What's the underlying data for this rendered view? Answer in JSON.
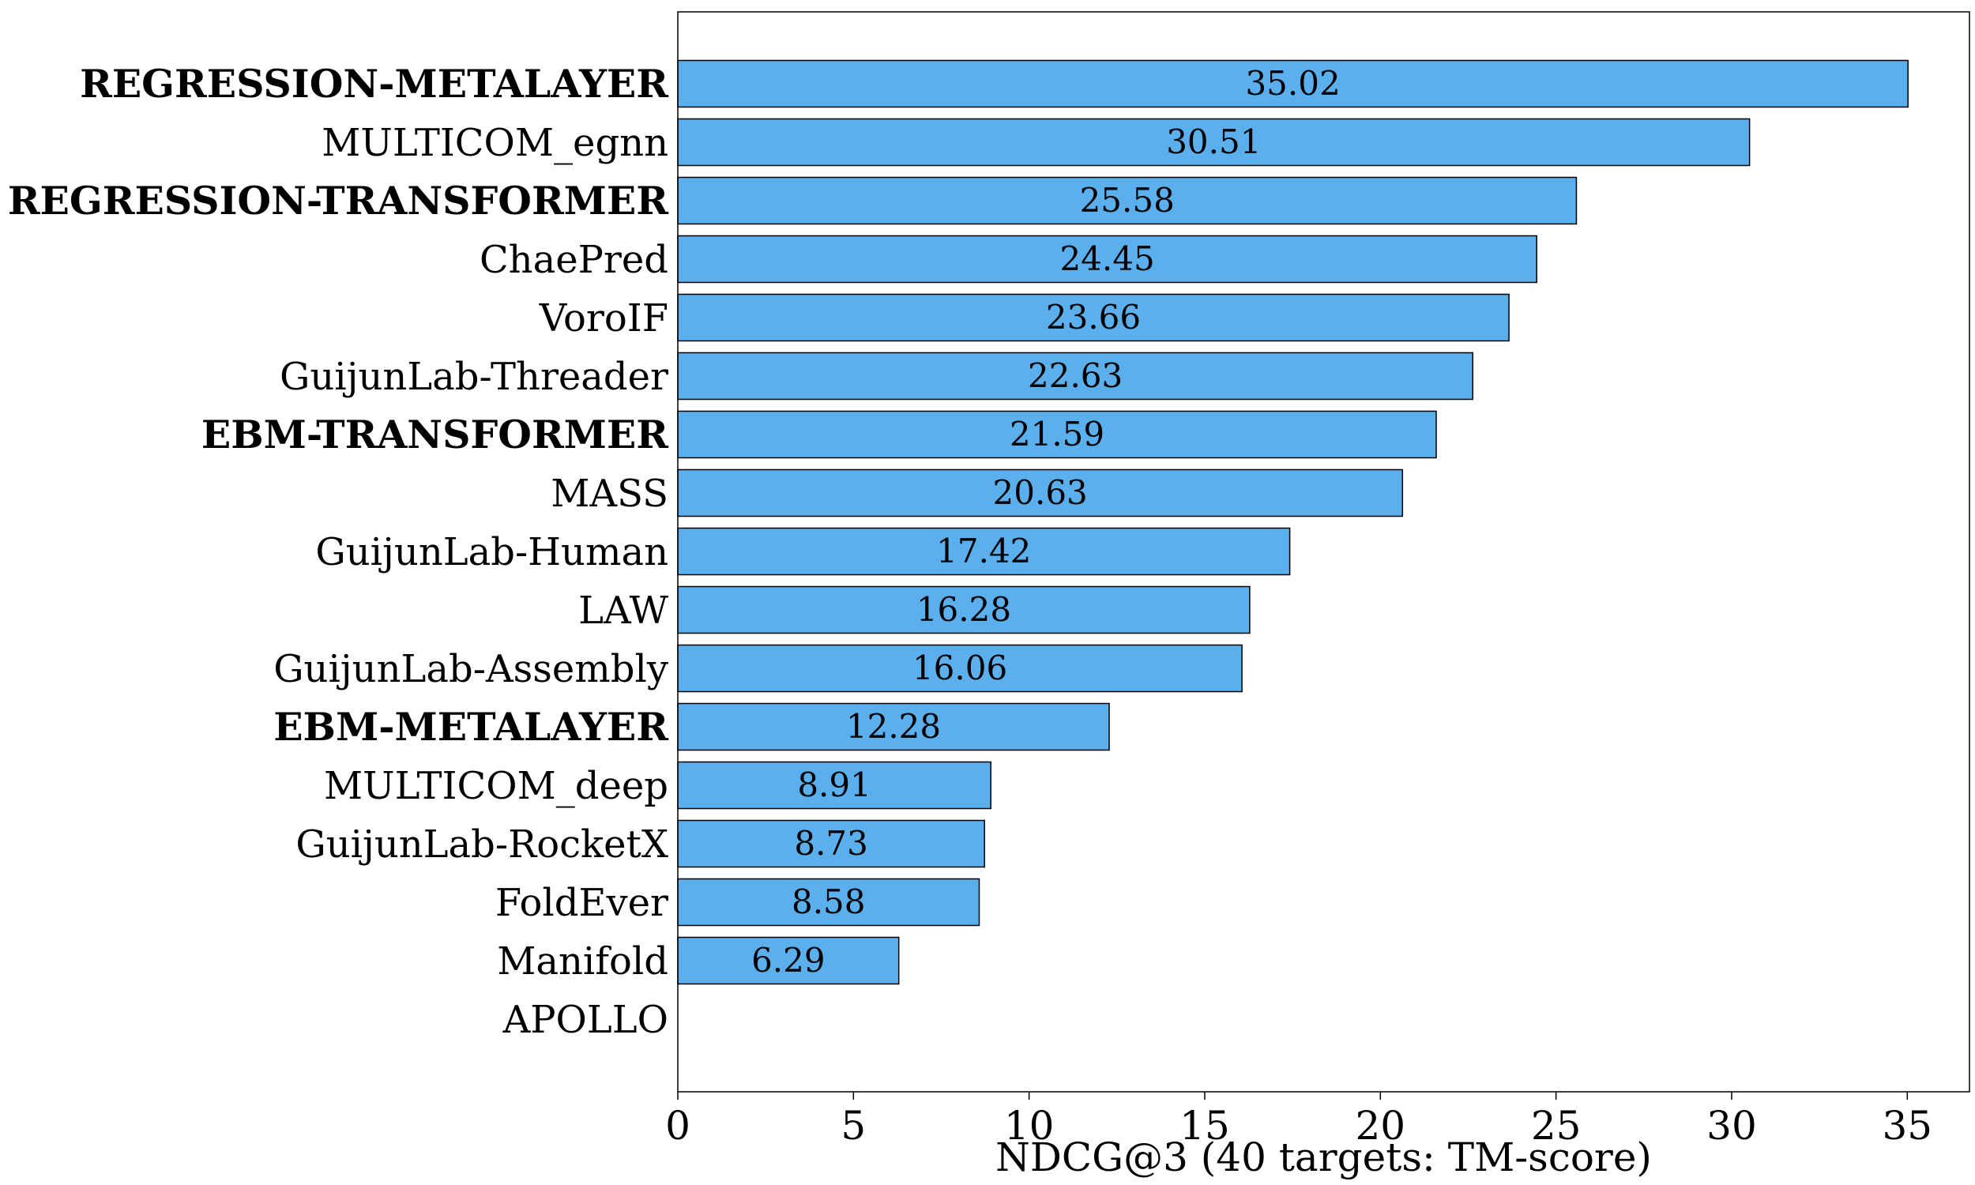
{
  "chart_data": {
    "type": "bar",
    "orientation": "horizontal",
    "categories": [
      "REGRESSION-METALAYER",
      "MULTICOM_egnn",
      "REGRESSION-TRANSFORMER",
      "ChaePred",
      "VoroIF",
      "GuijunLab-Threader",
      "EBM-TRANSFORMER",
      "MASS",
      "GuijunLab-Human",
      "LAW",
      "GuijunLab-Assembly",
      "EBM-METALAYER",
      "MULTICOM_deep",
      "GuijunLab-RocketX",
      "FoldEver",
      "Manifold",
      "APOLLO"
    ],
    "bold_categories": [
      "REGRESSION-METALAYER",
      "REGRESSION-TRANSFORMER",
      "EBM-TRANSFORMER",
      "EBM-METALAYER"
    ],
    "values": [
      35.02,
      30.51,
      25.58,
      24.45,
      23.66,
      22.63,
      21.59,
      20.63,
      17.42,
      16.28,
      16.06,
      12.28,
      8.91,
      8.73,
      8.58,
      6.29,
      0
    ],
    "value_labels": [
      "35.02",
      "30.51",
      "25.58",
      "24.45",
      "23.66",
      "22.63",
      "21.59",
      "20.63",
      "17.42",
      "16.28",
      "16.06",
      "12.28",
      "8.91",
      "8.73",
      "8.58",
      "6.29",
      ""
    ],
    "title": "",
    "xlabel": "NDCG@3 (40 targets: TM-score)",
    "ylabel": "",
    "xlim": [
      0,
      36.77
    ],
    "xticks": [
      0,
      5,
      10,
      15,
      20,
      25,
      30,
      35
    ],
    "grid": false,
    "bar_color": "#5aafec",
    "bar_edge_color": "#000000"
  }
}
